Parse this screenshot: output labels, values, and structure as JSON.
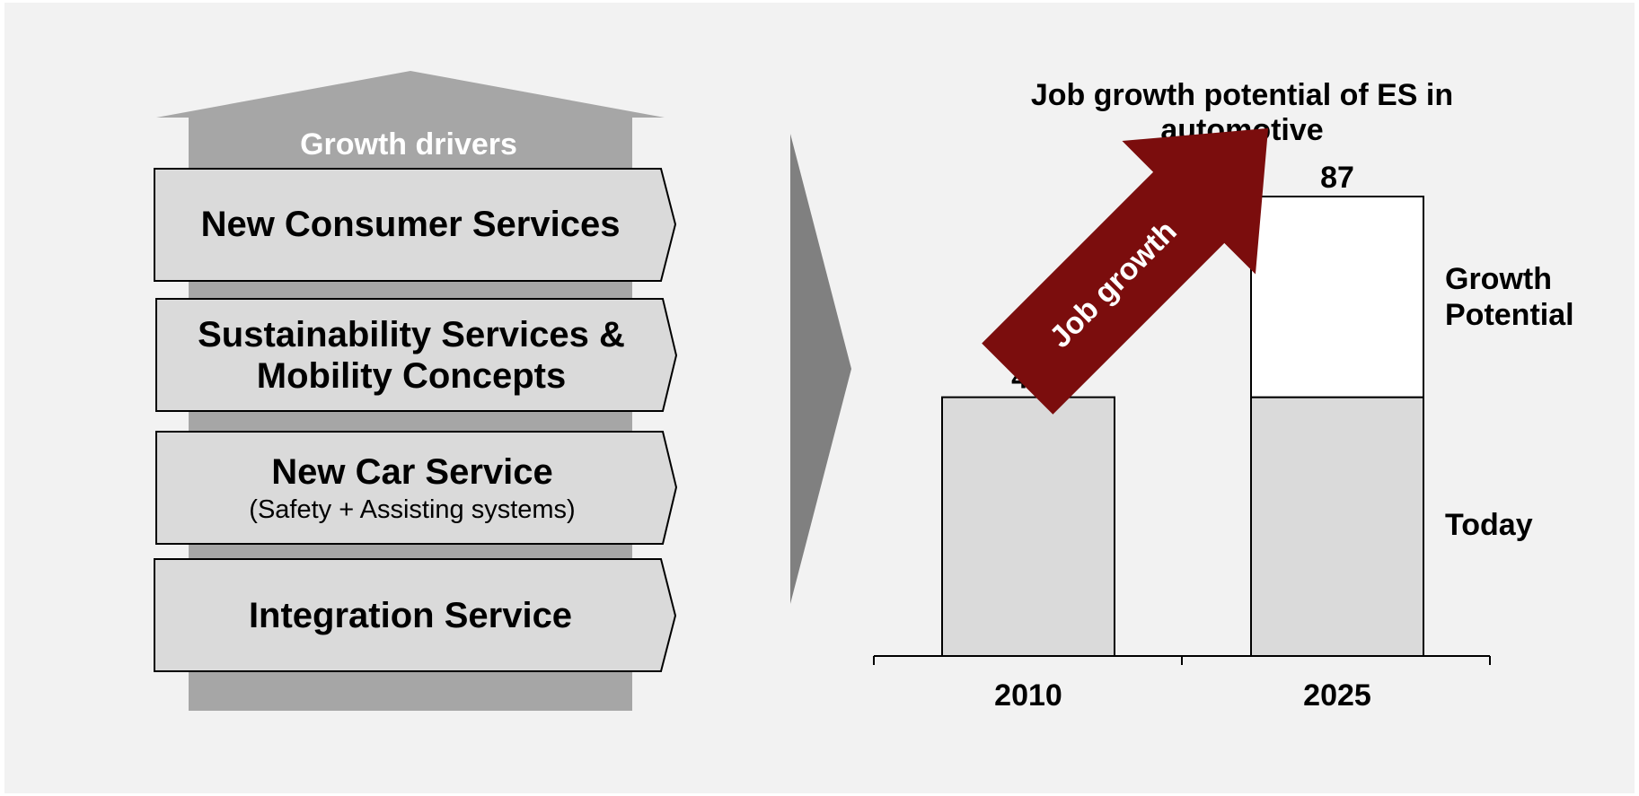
{
  "drivers": {
    "title": "Growth drivers",
    "items": [
      {
        "title": "New Consumer Services"
      },
      {
        "title_line1": "Sustainability Services &",
        "title_line2": "Mobility Concepts"
      },
      {
        "title": "New Car Service",
        "subtitle": "(Safety + Assisting systems)"
      },
      {
        "title": "Integration Service"
      }
    ]
  },
  "growth_arrow_label": "Job growth",
  "colors": {
    "background": "#f2f2f2",
    "house": "#a6a6a6",
    "chevron": "#808080",
    "box_fill": "#dadada",
    "bar_today": "#dadada",
    "bar_growth": "#ffffff",
    "growth_arrow": "#7b0d0d"
  },
  "chart_data": {
    "type": "bar",
    "stacked": true,
    "title_line1": "Job growth potential of ES in",
    "title_line2": "automotive",
    "categories": [
      "2010",
      "2025"
    ],
    "series": [
      {
        "name": "Today",
        "values": [
          49,
          49
        ]
      },
      {
        "name": "Growth Potential",
        "values": [
          0,
          38
        ]
      }
    ],
    "totals": [
      49,
      87
    ],
    "legend_labels": {
      "growth_line1": "Growth",
      "growth_line2": "Potential",
      "today": "Today"
    },
    "legend_placement": "right",
    "ylim": [
      0,
      87
    ],
    "grid": false,
    "y_axis_visible": false
  }
}
